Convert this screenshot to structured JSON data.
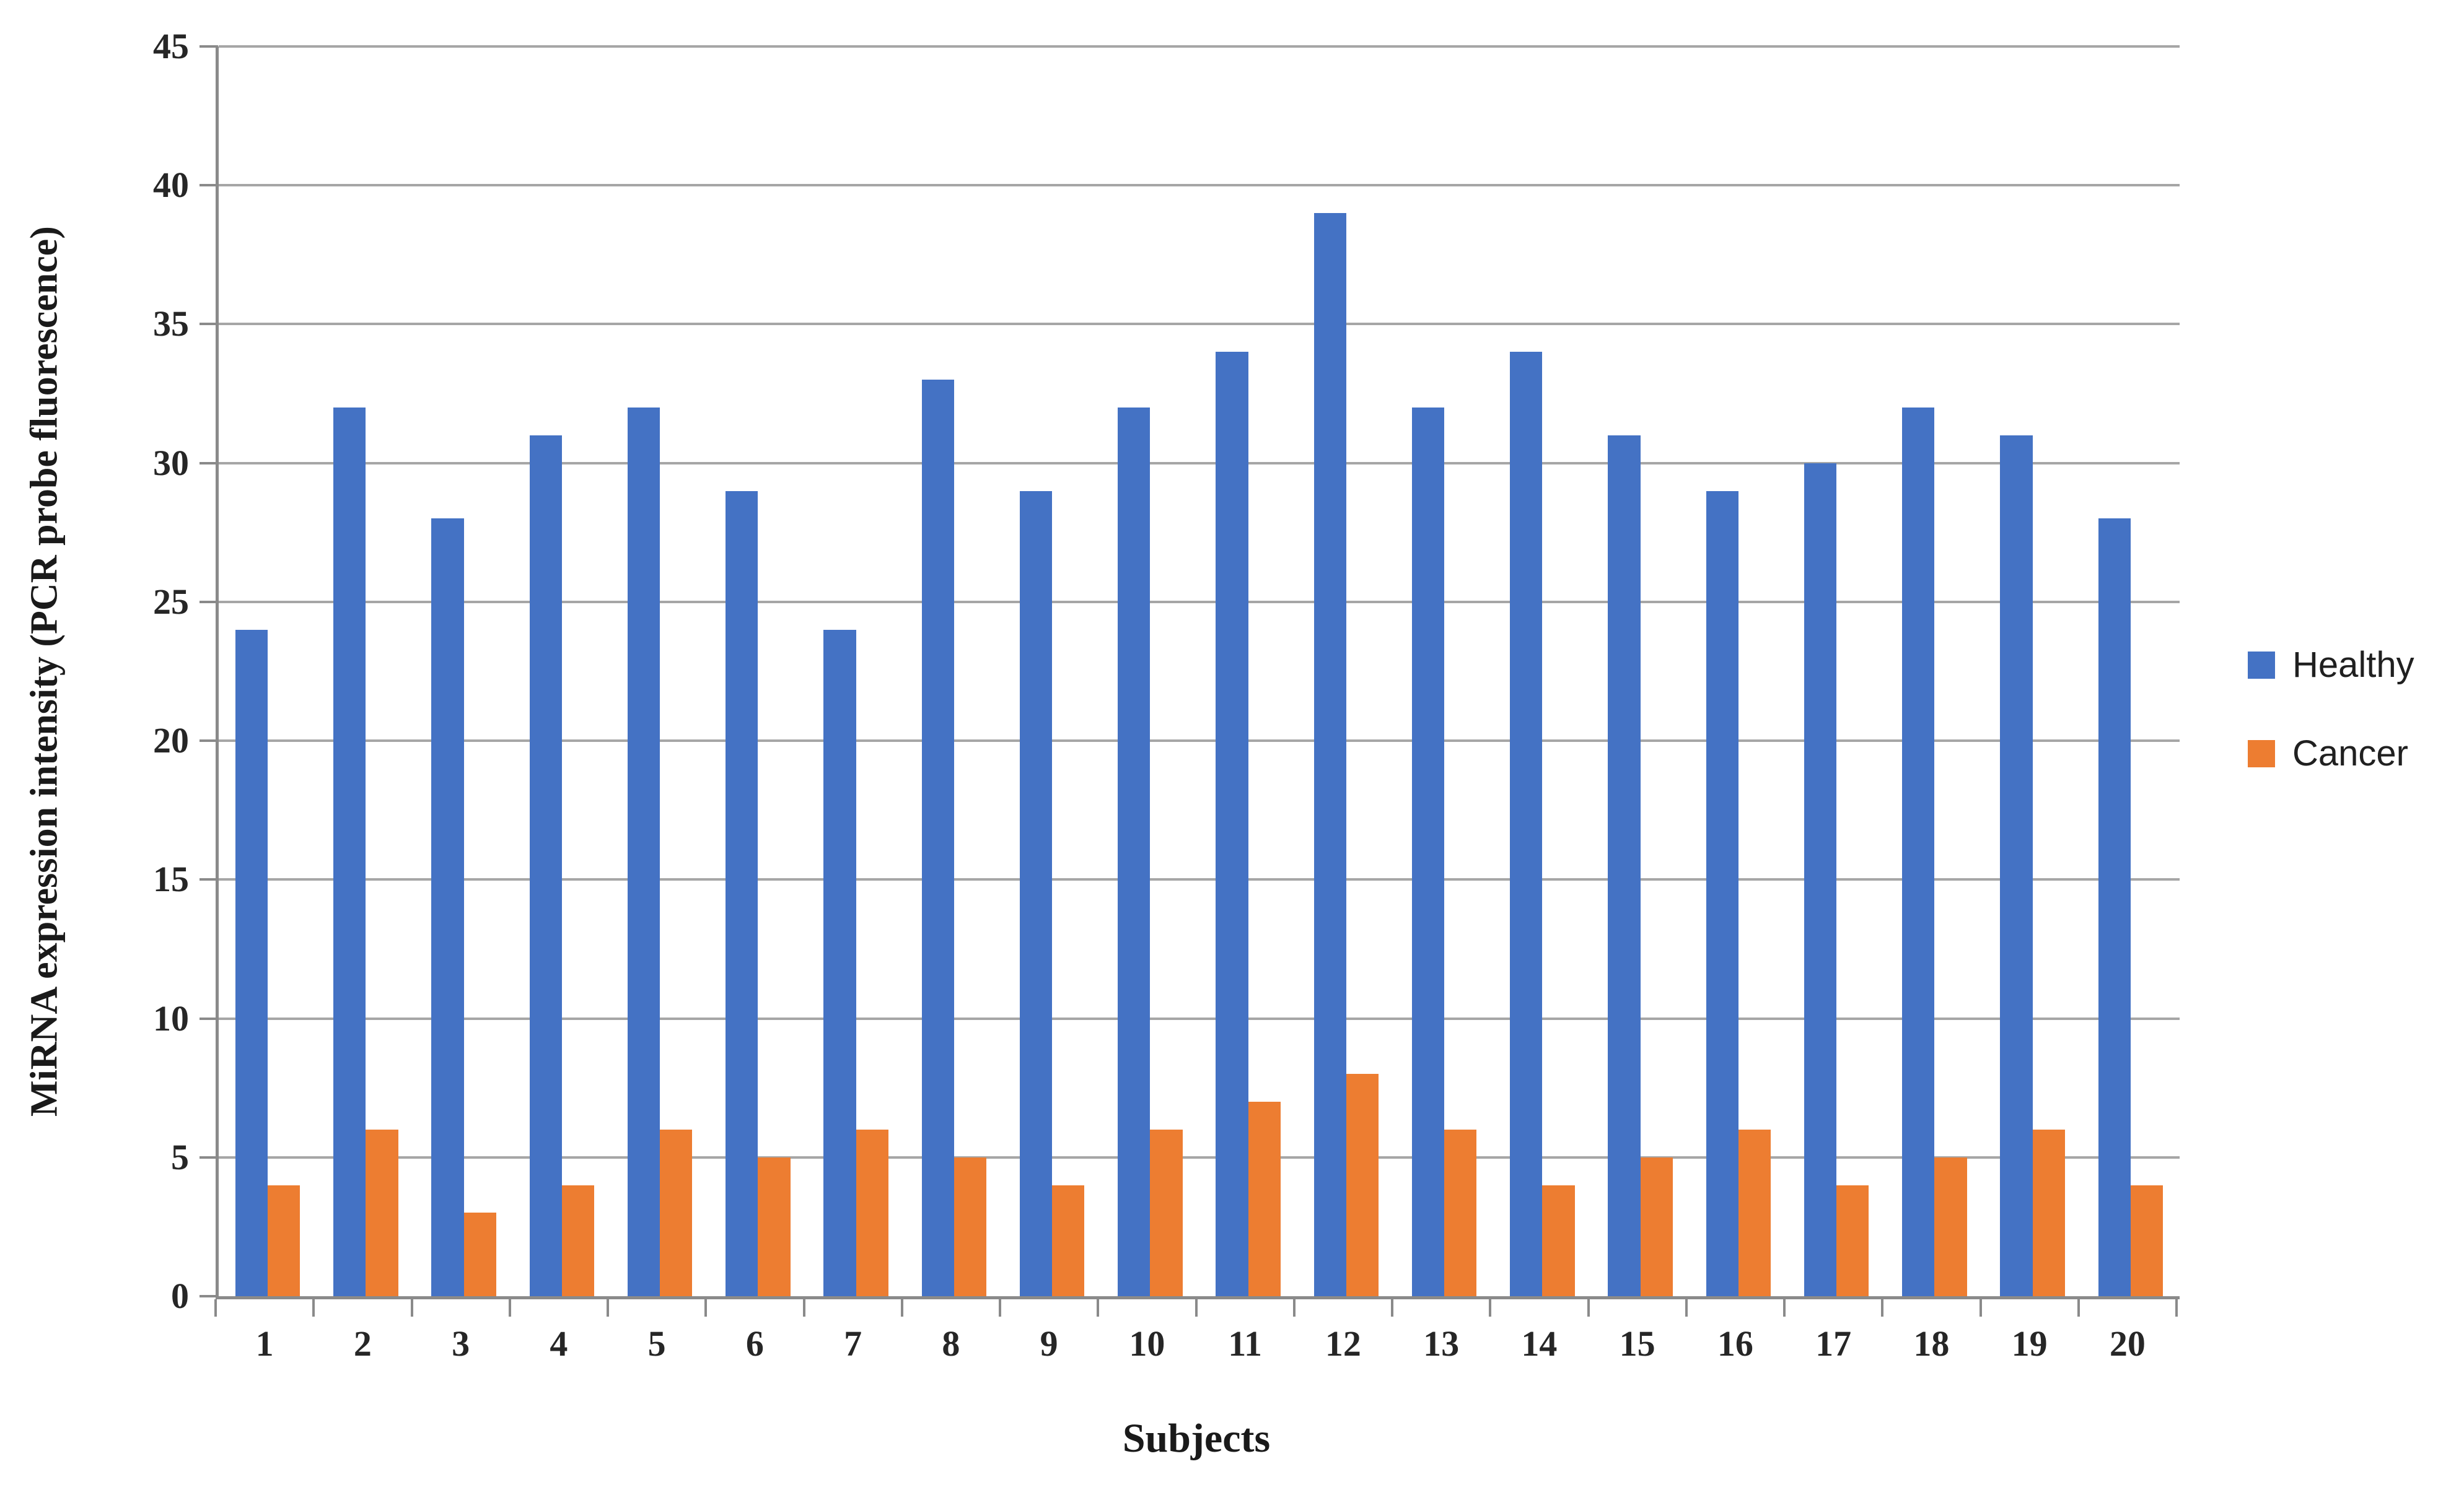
{
  "chart_data": {
    "type": "bar",
    "title": "",
    "xlabel": "Subjects",
    "ylabel": "MiRNA expression intensity (PCR probe fluorescence)",
    "categories": [
      "1",
      "2",
      "3",
      "4",
      "5",
      "6",
      "7",
      "8",
      "9",
      "10",
      "11",
      "12",
      "13",
      "14",
      "15",
      "16",
      "17",
      "18",
      "19",
      "20"
    ],
    "series": [
      {
        "name": "Healthy",
        "color": "#4472C4",
        "values": [
          24,
          32,
          28,
          31,
          32,
          29,
          24,
          33,
          29,
          32,
          34,
          39,
          32,
          34,
          31,
          29,
          30,
          32,
          31,
          28
        ]
      },
      {
        "name": "Cancer",
        "color": "#ED7D31",
        "values": [
          4,
          6,
          3,
          4,
          6,
          5,
          6,
          5,
          4,
          6,
          7,
          8,
          6,
          4,
          5,
          6,
          4,
          5,
          6,
          4
        ]
      }
    ],
    "ylim": [
      0,
      45
    ],
    "ytick_step": 5,
    "yticks": [
      0,
      5,
      10,
      15,
      20,
      25,
      30,
      35,
      40,
      45
    ],
    "grid": true,
    "gridline_color": "#a6a6a6",
    "axis_line_color": "#8a8a8a",
    "tick_label_color": "#262626",
    "legend_position": "right"
  }
}
